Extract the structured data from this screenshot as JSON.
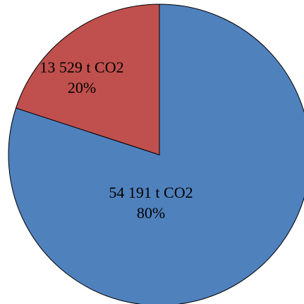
{
  "chart_data": {
    "type": "pie",
    "slices": [
      {
        "value": 54191,
        "unit": "t CO2",
        "label": "54 191 t CO2",
        "percent": "80%",
        "color": "#4F81BD"
      },
      {
        "value": 13529,
        "unit": "t CO2",
        "label": "13 529 t CO2",
        "percent": "20%",
        "color": "#C0504D"
      }
    ],
    "start": "12 o'clock",
    "direction": "clockwise",
    "legend": "none"
  }
}
